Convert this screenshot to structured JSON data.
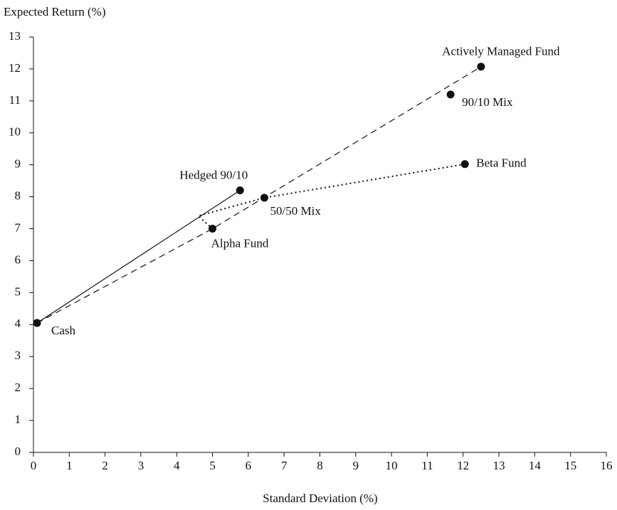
{
  "chart_data": {
    "type": "scatter",
    "y_label": "Expected Return (%)",
    "x_label": "Standard Deviation (%)",
    "xlim": [
      0,
      16
    ],
    "ylim": [
      0,
      13
    ],
    "xticks": [
      0,
      1,
      2,
      3,
      4,
      5,
      6,
      7,
      8,
      9,
      10,
      11,
      12,
      13,
      14,
      15,
      16
    ],
    "yticks": [
      0,
      1,
      2,
      3,
      4,
      5,
      6,
      7,
      8,
      9,
      10,
      11,
      12,
      13
    ],
    "color": "#111111",
    "points": [
      {
        "label": "Cash",
        "x": 0.1,
        "y": 4.05
      },
      {
        "label": "Actively Managed Fund",
        "x": 12.5,
        "y": 12.07
      },
      {
        "label": "90/10 Mix",
        "x": 11.65,
        "y": 11.2
      },
      {
        "label": "Beta Fund",
        "x": 12.05,
        "y": 9.02
      },
      {
        "label": "Hedged 90/10",
        "x": 5.77,
        "y": 8.2
      },
      {
        "label": "50/50 Mix",
        "x": 6.45,
        "y": 7.97
      },
      {
        "label": "Alpha Fund",
        "x": 5,
        "y": 7
      }
    ],
    "lines": [
      {
        "style": "dashed",
        "x": [
          0.1,
          5,
          12.5
        ],
        "y": [
          4.05,
          7,
          12.07
        ]
      },
      {
        "style": "dotted",
        "x": [
          12.05,
          6.45,
          4.6,
          5
        ],
        "y": [
          9.02,
          7.97,
          7.4,
          7
        ]
      },
      {
        "style": "solid",
        "x": [
          0.1,
          5.77
        ],
        "y": [
          4.05,
          8.2
        ]
      }
    ]
  }
}
